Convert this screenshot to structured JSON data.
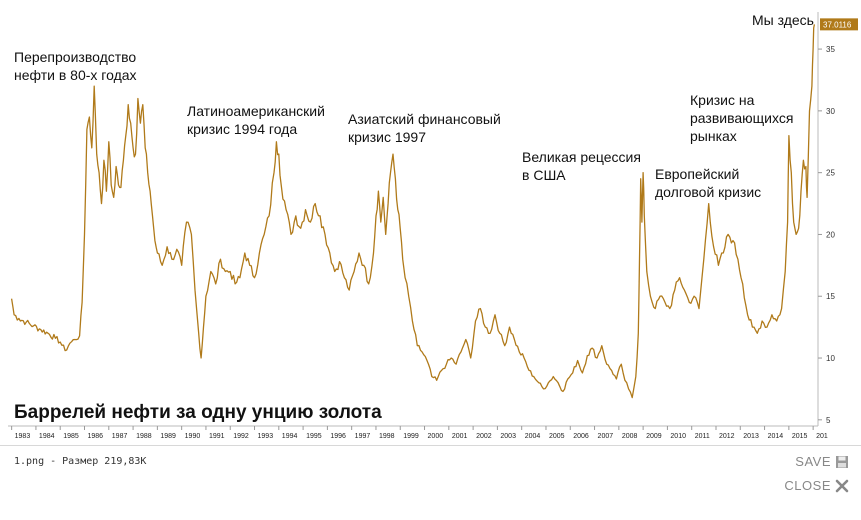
{
  "footer": {
    "filename_text": "1.png - Размер 219,83К",
    "save_label": "SAVE",
    "close_label": "CLOSE"
  },
  "chart_data": {
    "type": "line",
    "title": "Баррелей нефти за одну унцию золота",
    "xlabel": "",
    "ylabel": "",
    "x_ticks": [
      "1983",
      "1984",
      "1985",
      "1986",
      "1987",
      "1988",
      "1989",
      "1990",
      "1991",
      "1992",
      "1993",
      "1994",
      "1995",
      "1996",
      "1997",
      "1998",
      "1999",
      "2000",
      "2001",
      "2002",
      "2003",
      "2004",
      "2005",
      "2006",
      "2007",
      "2008",
      "2009",
      "2010",
      "2011",
      "2012",
      "2013",
      "2014",
      "2015",
      "201"
    ],
    "y_ticks": [
      5,
      10,
      15,
      20,
      25,
      30,
      35
    ],
    "ylim": [
      4.5,
      38
    ],
    "xlim": [
      1982.85,
      2016.2
    ],
    "y_axis_side": "right",
    "last_value_label": "37.0116",
    "line_color": "#b07a1a",
    "series": [
      {
        "points": [
          [
            1983.0,
            14.8
          ],
          [
            1983.1,
            13.5
          ],
          [
            1983.3,
            13.2
          ],
          [
            1983.6,
            12.9
          ],
          [
            1983.9,
            12.6
          ],
          [
            1984.2,
            12.3
          ],
          [
            1984.5,
            12.0
          ],
          [
            1984.8,
            11.6
          ],
          [
            1985.0,
            11.3
          ],
          [
            1985.2,
            10.6
          ],
          [
            1985.4,
            11.2
          ],
          [
            1985.6,
            11.5
          ],
          [
            1985.8,
            11.8
          ],
          [
            1985.9,
            14.5
          ],
          [
            1986.0,
            20.0
          ],
          [
            1986.1,
            28.5
          ],
          [
            1986.2,
            29.5
          ],
          [
            1986.3,
            27.0
          ],
          [
            1986.4,
            32.0
          ],
          [
            1986.5,
            26.5
          ],
          [
            1986.6,
            25.0
          ],
          [
            1986.7,
            22.5
          ],
          [
            1986.8,
            26.0
          ],
          [
            1986.9,
            23.5
          ],
          [
            1987.0,
            27.5
          ],
          [
            1987.1,
            24.0
          ],
          [
            1987.2,
            23.0
          ],
          [
            1987.3,
            25.5
          ],
          [
            1987.4,
            24.0
          ],
          [
            1987.5,
            23.8
          ],
          [
            1987.6,
            26.0
          ],
          [
            1987.7,
            28.0
          ],
          [
            1987.8,
            30.5
          ],
          [
            1987.9,
            29.0
          ],
          [
            1988.0,
            27.0
          ],
          [
            1988.1,
            26.5
          ],
          [
            1988.2,
            31.0
          ],
          [
            1988.3,
            29.0
          ],
          [
            1988.4,
            30.5
          ],
          [
            1988.5,
            27.0
          ],
          [
            1988.6,
            25.0
          ],
          [
            1988.7,
            23.5
          ],
          [
            1988.8,
            21.5
          ],
          [
            1988.9,
            19.5
          ],
          [
            1989.0,
            18.5
          ],
          [
            1989.2,
            17.5
          ],
          [
            1989.4,
            19.0
          ],
          [
            1989.6,
            18.0
          ],
          [
            1989.8,
            18.8
          ],
          [
            1990.0,
            17.5
          ],
          [
            1990.2,
            21.0
          ],
          [
            1990.4,
            20.0
          ],
          [
            1990.55,
            15.5
          ],
          [
            1990.7,
            12.0
          ],
          [
            1990.8,
            10.0
          ],
          [
            1990.9,
            12.5
          ],
          [
            1991.0,
            15.0
          ],
          [
            1991.2,
            17.0
          ],
          [
            1991.4,
            16.0
          ],
          [
            1991.6,
            18.0
          ],
          [
            1991.8,
            17.0
          ],
          [
            1992.0,
            17.0
          ],
          [
            1992.2,
            16.0
          ],
          [
            1992.4,
            16.5
          ],
          [
            1992.6,
            18.5
          ],
          [
            1992.8,
            17.5
          ],
          [
            1993.0,
            16.5
          ],
          [
            1993.2,
            18.5
          ],
          [
            1993.4,
            20.0
          ],
          [
            1993.6,
            21.5
          ],
          [
            1993.8,
            25.0
          ],
          [
            1993.9,
            27.5
          ],
          [
            1994.0,
            26.5
          ],
          [
            1994.1,
            24.0
          ],
          [
            1994.3,
            22.0
          ],
          [
            1994.5,
            20.0
          ],
          [
            1994.7,
            21.5
          ],
          [
            1994.9,
            20.5
          ],
          [
            1995.1,
            22.0
          ],
          [
            1995.3,
            21.0
          ],
          [
            1995.5,
            22.5
          ],
          [
            1995.7,
            21.5
          ],
          [
            1995.9,
            20.0
          ],
          [
            1996.1,
            18.5
          ],
          [
            1996.3,
            17.0
          ],
          [
            1996.5,
            17.8
          ],
          [
            1996.7,
            16.5
          ],
          [
            1996.9,
            15.5
          ],
          [
            1997.1,
            17.0
          ],
          [
            1997.3,
            18.5
          ],
          [
            1997.5,
            17.5
          ],
          [
            1997.7,
            16.0
          ],
          [
            1997.9,
            18.5
          ],
          [
            1998.0,
            21.5
          ],
          [
            1998.1,
            23.5
          ],
          [
            1998.2,
            21.0
          ],
          [
            1998.3,
            23.0
          ],
          [
            1998.4,
            20.0
          ],
          [
            1998.5,
            22.5
          ],
          [
            1998.6,
            25.0
          ],
          [
            1998.7,
            26.5
          ],
          [
            1998.8,
            24.5
          ],
          [
            1998.9,
            22.0
          ],
          [
            1999.0,
            20.5
          ],
          [
            1999.1,
            18.0
          ],
          [
            1999.2,
            16.5
          ],
          [
            1999.35,
            15.0
          ],
          [
            1999.5,
            13.0
          ],
          [
            1999.7,
            11.0
          ],
          [
            1999.9,
            10.5
          ],
          [
            2000.1,
            9.8
          ],
          [
            2000.3,
            8.5
          ],
          [
            2000.5,
            8.2
          ],
          [
            2000.7,
            9.0
          ],
          [
            2000.9,
            9.5
          ],
          [
            2001.1,
            10.0
          ],
          [
            2001.3,
            9.5
          ],
          [
            2001.5,
            10.5
          ],
          [
            2001.7,
            11.5
          ],
          [
            2001.9,
            10.0
          ],
          [
            2002.1,
            13.0
          ],
          [
            2002.3,
            14.0
          ],
          [
            2002.5,
            12.5
          ],
          [
            2002.7,
            12.0
          ],
          [
            2002.9,
            13.5
          ],
          [
            2003.1,
            12.0
          ],
          [
            2003.3,
            11.0
          ],
          [
            2003.5,
            12.5
          ],
          [
            2003.7,
            11.5
          ],
          [
            2003.9,
            10.5
          ],
          [
            2004.1,
            10.0
          ],
          [
            2004.3,
            9.0
          ],
          [
            2004.5,
            8.5
          ],
          [
            2004.7,
            8.0
          ],
          [
            2004.9,
            7.5
          ],
          [
            2005.1,
            8.0
          ],
          [
            2005.3,
            8.5
          ],
          [
            2005.5,
            8.0
          ],
          [
            2005.7,
            7.3
          ],
          [
            2005.9,
            8.3
          ],
          [
            2006.1,
            8.8
          ],
          [
            2006.3,
            9.8
          ],
          [
            2006.5,
            8.8
          ],
          [
            2006.7,
            10.2
          ],
          [
            2006.9,
            10.8
          ],
          [
            2007.1,
            10.0
          ],
          [
            2007.3,
            11.0
          ],
          [
            2007.5,
            9.5
          ],
          [
            2007.7,
            9.0
          ],
          [
            2007.9,
            8.3
          ],
          [
            2008.1,
            9.5
          ],
          [
            2008.25,
            8.2
          ],
          [
            2008.4,
            7.5
          ],
          [
            2008.55,
            6.8
          ],
          [
            2008.7,
            8.5
          ],
          [
            2008.8,
            12.0
          ],
          [
            2008.85,
            18.0
          ],
          [
            2008.9,
            24.5
          ],
          [
            2008.95,
            21.0
          ],
          [
            2009.0,
            25.0
          ],
          [
            2009.05,
            21.5
          ],
          [
            2009.15,
            17.0
          ],
          [
            2009.3,
            15.0
          ],
          [
            2009.5,
            14.0
          ],
          [
            2009.7,
            15.0
          ],
          [
            2009.9,
            14.5
          ],
          [
            2010.1,
            14.0
          ],
          [
            2010.3,
            15.5
          ],
          [
            2010.5,
            16.5
          ],
          [
            2010.7,
            15.5
          ],
          [
            2010.9,
            14.5
          ],
          [
            2011.1,
            15.0
          ],
          [
            2011.3,
            14.0
          ],
          [
            2011.5,
            18.0
          ],
          [
            2011.7,
            22.5
          ],
          [
            2011.9,
            19.0
          ],
          [
            2012.1,
            17.5
          ],
          [
            2012.3,
            18.5
          ],
          [
            2012.5,
            20.0
          ],
          [
            2012.7,
            19.5
          ],
          [
            2012.9,
            18.0
          ],
          [
            2013.1,
            16.0
          ],
          [
            2013.3,
            13.5
          ],
          [
            2013.5,
            12.5
          ],
          [
            2013.7,
            12.0
          ],
          [
            2013.9,
            13.0
          ],
          [
            2014.1,
            12.5
          ],
          [
            2014.3,
            13.5
          ],
          [
            2014.5,
            13.0
          ],
          [
            2014.7,
            14.0
          ],
          [
            2014.85,
            17.0
          ],
          [
            2014.95,
            21.0
          ],
          [
            2015.0,
            28.0
          ],
          [
            2015.1,
            25.0
          ],
          [
            2015.2,
            21.0
          ],
          [
            2015.3,
            20.0
          ],
          [
            2015.4,
            20.5
          ],
          [
            2015.5,
            23.5
          ],
          [
            2015.6,
            26.0
          ],
          [
            2015.7,
            25.5
          ],
          [
            2015.75,
            23.0
          ],
          [
            2015.85,
            30.0
          ],
          [
            2015.95,
            32.0
          ],
          [
            2016.0,
            35.0
          ],
          [
            2016.05,
            37.0
          ]
        ]
      }
    ],
    "annotations": [
      {
        "id": "overproduction",
        "lines": [
          "Перепроизводство",
          "нефти в 80-х годах"
        ]
      },
      {
        "id": "latam",
        "lines": [
          "Латиноамериканский",
          "кризис 1994 года"
        ]
      },
      {
        "id": "asian",
        "lines": [
          "Азиатский финансовый",
          "кризис 1997"
        ]
      },
      {
        "id": "recession",
        "lines": [
          "Великая рецессия",
          "в США"
        ]
      },
      {
        "id": "euro",
        "lines": [
          "Европейский",
          "долговой кризис"
        ]
      },
      {
        "id": "em",
        "lines": [
          "Кризис на",
          "развивающихся",
          "рынках"
        ]
      },
      {
        "id": "here",
        "lines": [
          "Мы здесь"
        ]
      }
    ]
  }
}
